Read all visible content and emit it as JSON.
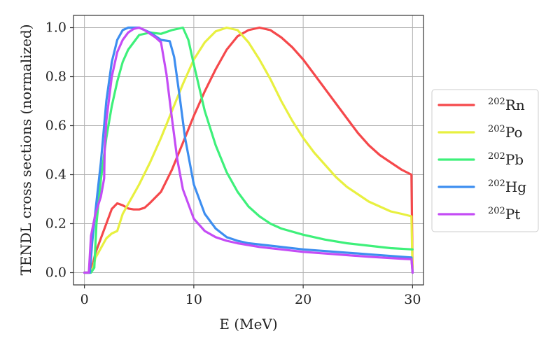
{
  "chart_data": {
    "type": "line",
    "xlabel": "E (MeV)",
    "ylabel": "TENDL cross sections (normalized)",
    "xlim": [
      -1,
      31
    ],
    "ylim": [
      -0.05,
      1.05
    ],
    "xticks": [
      0,
      10,
      20,
      30
    ],
    "yticks": [
      0.0,
      0.2,
      0.4,
      0.6,
      0.8,
      1.0
    ],
    "ytick_labels": [
      "0.0",
      "0.2",
      "0.4",
      "0.6",
      "0.8",
      "1.0"
    ],
    "grid": true,
    "legend_position": "center-right outside",
    "series": [
      {
        "name": "Rn",
        "mass_number": "202",
        "color": "#f5484b",
        "x": [
          0,
          0.5,
          0.8,
          1,
          1.5,
          2,
          2.5,
          3,
          3.5,
          4,
          4.5,
          5,
          5.5,
          6,
          7,
          8,
          9,
          10,
          11,
          12,
          13,
          14,
          15,
          16,
          17,
          18,
          19,
          20,
          21,
          22,
          23,
          24,
          25,
          26,
          27,
          28,
          29,
          29.9,
          30
        ],
        "y": [
          0,
          0,
          0.04,
          0.08,
          0.14,
          0.2,
          0.26,
          0.283,
          0.275,
          0.262,
          0.258,
          0.258,
          0.265,
          0.285,
          0.33,
          0.42,
          0.53,
          0.64,
          0.74,
          0.83,
          0.91,
          0.965,
          0.99,
          1.0,
          0.99,
          0.96,
          0.92,
          0.87,
          0.81,
          0.75,
          0.69,
          0.63,
          0.57,
          0.52,
          0.48,
          0.45,
          0.42,
          0.4,
          0.0
        ]
      },
      {
        "name": "Po",
        "mass_number": "202",
        "color": "#e8f040",
        "x": [
          0,
          0.5,
          0.8,
          1,
          1.5,
          2,
          2.5,
          3,
          3.5,
          4,
          5,
          6,
          7,
          8,
          9,
          10,
          11,
          12,
          13,
          14,
          15,
          16,
          17,
          18,
          19,
          20,
          21,
          22,
          23,
          24,
          25,
          26,
          27,
          28,
          29,
          29.9,
          30
        ],
        "y": [
          0,
          0,
          0.02,
          0.06,
          0.1,
          0.14,
          0.16,
          0.17,
          0.24,
          0.28,
          0.36,
          0.45,
          0.55,
          0.66,
          0.77,
          0.87,
          0.94,
          0.985,
          1.0,
          0.99,
          0.94,
          0.87,
          0.79,
          0.7,
          0.62,
          0.55,
          0.49,
          0.44,
          0.39,
          0.35,
          0.32,
          0.29,
          0.27,
          0.25,
          0.24,
          0.23,
          0.0
        ]
      },
      {
        "name": "Pb",
        "mass_number": "202",
        "color": "#3ef07a",
        "x": [
          0,
          0.6,
          0.9,
          1.1,
          1.5,
          2,
          2.5,
          3,
          3.5,
          4,
          5,
          6,
          7,
          8,
          9,
          9.5,
          10,
          11,
          12,
          13,
          14,
          15,
          16,
          17,
          18,
          20,
          22,
          24,
          26,
          28,
          30
        ],
        "y": [
          0,
          0,
          0.02,
          0.2,
          0.38,
          0.55,
          0.68,
          0.78,
          0.86,
          0.91,
          0.97,
          0.98,
          0.975,
          0.99,
          1.0,
          0.95,
          0.85,
          0.66,
          0.52,
          0.41,
          0.33,
          0.27,
          0.23,
          0.2,
          0.18,
          0.155,
          0.135,
          0.12,
          0.11,
          0.1,
          0.095
        ]
      },
      {
        "name": "Hg",
        "mass_number": "202",
        "color": "#3d8ef0",
        "x": [
          0,
          0.5,
          0.7,
          1,
          1.5,
          2,
          2.5,
          3,
          3.5,
          4,
          5,
          6,
          7,
          7.8,
          8.2,
          8.7,
          9.2,
          10,
          11,
          12,
          13,
          14,
          15,
          17,
          20,
          23,
          26,
          29,
          29.9,
          30
        ],
        "y": [
          0,
          0,
          0.12,
          0.25,
          0.45,
          0.7,
          0.86,
          0.95,
          0.99,
          1.0,
          1.0,
          0.98,
          0.95,
          0.945,
          0.88,
          0.72,
          0.55,
          0.36,
          0.24,
          0.18,
          0.145,
          0.13,
          0.12,
          0.11,
          0.095,
          0.085,
          0.075,
          0.065,
          0.062,
          0.0
        ]
      },
      {
        "name": "Pt",
        "mass_number": "202",
        "color": "#c44cf5",
        "x": [
          0,
          0.4,
          0.6,
          1,
          1.5,
          1.8,
          1.85,
          2,
          2.5,
          3,
          3.5,
          4,
          4.5,
          5,
          5.5,
          6,
          6.5,
          7,
          7.5,
          8,
          8.5,
          9,
          10,
          11,
          12,
          13,
          14,
          16,
          18,
          20,
          23,
          26,
          29,
          29.9,
          30
        ],
        "y": [
          0,
          0,
          0.15,
          0.24,
          0.31,
          0.385,
          0.5,
          0.62,
          0.8,
          0.9,
          0.95,
          0.98,
          0.995,
          1.0,
          0.99,
          0.975,
          0.96,
          0.94,
          0.81,
          0.63,
          0.46,
          0.34,
          0.22,
          0.17,
          0.145,
          0.13,
          0.12,
          0.105,
          0.095,
          0.085,
          0.075,
          0.065,
          0.057,
          0.055,
          0.0
        ]
      }
    ]
  }
}
